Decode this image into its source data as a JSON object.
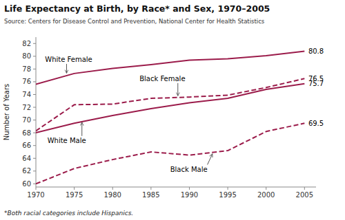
{
  "chart_data": {
    "type": "line",
    "title": "Life Expectancy at Birth, by Race* and Sex, 1970–2005",
    "subtitle": "Source: Centers for Disease Control and Prevention, National Center for Health Statistics",
    "footnote": "*Both racial categories include Hispanics.",
    "ylabel": "Number of Years",
    "color": "#9B1B4A",
    "xlim": [
      1970,
      2006.5
    ],
    "ylim": [
      59.5,
      83
    ],
    "xticks": [
      1970,
      1975,
      1980,
      1985,
      1990,
      1995,
      2000,
      2005
    ],
    "yticks": [
      60,
      62,
      64,
      66,
      68,
      70,
      72,
      74,
      76,
      78,
      80,
      82
    ],
    "grid": false,
    "x": [
      1970,
      1975,
      1980,
      1985,
      1990,
      1995,
      2000,
      2005
    ],
    "series": [
      {
        "name": "White Female",
        "line_style": "solid",
        "values": [
          75.6,
          77.3,
          78.1,
          78.7,
          79.4,
          79.6,
          80.1,
          80.8
        ]
      },
      {
        "name": "Black Female",
        "line_style": "dashed",
        "values": [
          68.3,
          72.4,
          72.5,
          73.4,
          73.6,
          73.9,
          75.1,
          76.5
        ]
      },
      {
        "name": "White Male",
        "line_style": "solid",
        "values": [
          68.0,
          69.5,
          70.7,
          71.8,
          72.7,
          73.4,
          74.8,
          75.7
        ]
      },
      {
        "name": "Black Male",
        "line_style": "dashed",
        "values": [
          60.0,
          62.4,
          63.8,
          65.0,
          64.5,
          65.2,
          68.2,
          69.5
        ]
      }
    ],
    "annotations": [
      {
        "text": "80.8",
        "x": 2005.5,
        "y": 80.8
      },
      {
        "text": "White Female",
        "x": 1971.2,
        "y": 79.5,
        "arrow_x": 1974.0,
        "arrow_y": 77.35
      },
      {
        "text": "76.5",
        "x": 2005.5,
        "y": 76.5
      },
      {
        "text": "Black Female",
        "x": 1983.5,
        "y": 76.5,
        "arrow_x": 1988.5,
        "arrow_y": 73.8
      },
      {
        "text": "75.7",
        "x": 2005.5,
        "y": 75.7
      },
      {
        "text": "White Male",
        "x": 1971.5,
        "y": 66.8,
        "arrow_x": 1976.0,
        "arrow_y": 69.65
      },
      {
        "text": "69.5",
        "x": 2005.5,
        "y": 69.5
      },
      {
        "text": "Black Male",
        "x": 1987.5,
        "y": 62.3,
        "arrow_x": 1993.0,
        "arrow_y": 64.7
      }
    ]
  }
}
